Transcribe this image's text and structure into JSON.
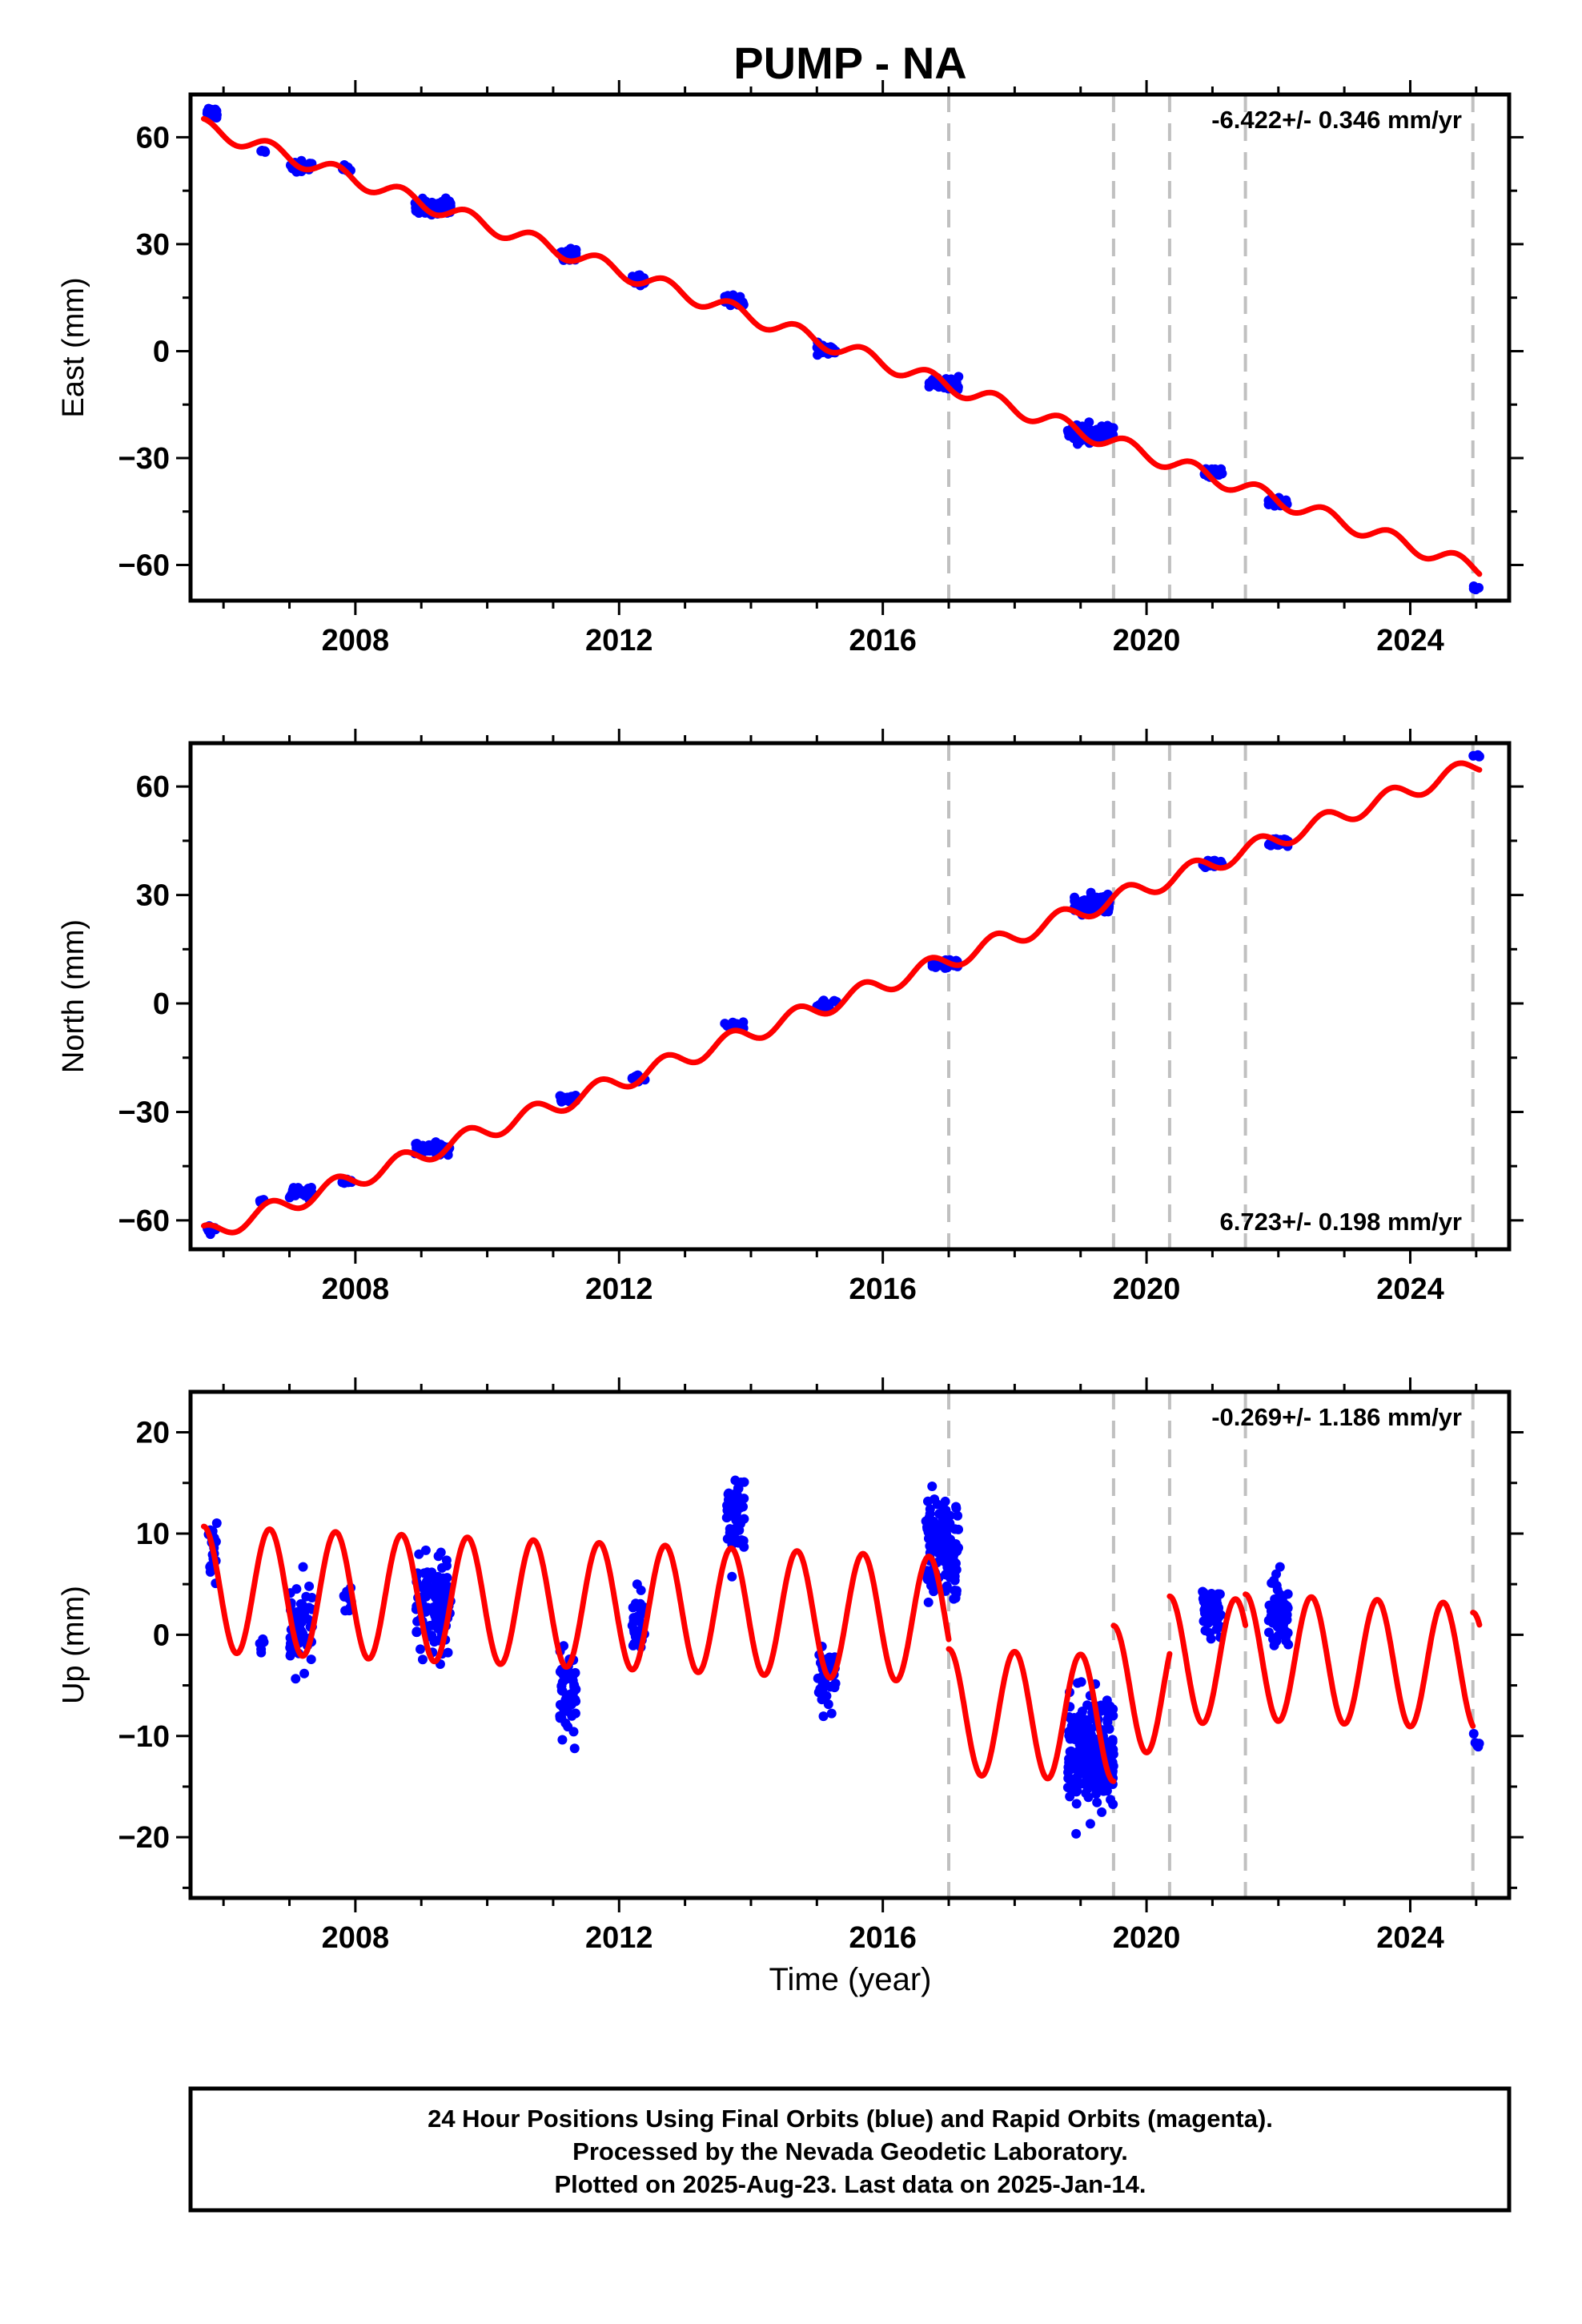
{
  "title": "PUMP - NA",
  "xlabel": "Time (year)",
  "caption": [
    "24 Hour Positions Using Final Orbits (blue) and Rapid Orbits (magenta).",
    "Processed by the Nevada Geodetic Laboratory.",
    "Plotted on 2025-Aug-23. Last data on 2025-Jan-14."
  ],
  "colors": {
    "data": "#0000ff",
    "model": "#ff0000",
    "steps": "#c0c0c0",
    "axes": "#000000"
  },
  "chart_data": [
    {
      "type": "scatter",
      "panel": "east",
      "ylabel": "East (mm)",
      "rate_text": "-6.422+/- 0.346 mm/yr",
      "rate_position": "top-right",
      "xlim": [
        2005.5,
        2025.5
      ],
      "ylim": [
        -70,
        72
      ],
      "xticks": [
        2008,
        2012,
        2016,
        2020,
        2024
      ],
      "yticks": [
        60,
        30,
        0,
        -30,
        -60
      ],
      "ytick_labels": [
        "60",
        "30",
        "0",
        "−30",
        "−60"
      ],
      "step_lines": [
        2017.0,
        2019.5,
        2020.35,
        2021.5,
        2024.95
      ],
      "model_segments": [
        {
          "x0": 2005.7,
          "x1": 2025.05,
          "y0": 63.0,
          "rate": -6.422,
          "amp": 2.2,
          "phase": 0.0
        }
      ],
      "data_clusters": [
        {
          "x": [
            2005.75,
            2005.9
          ],
          "y": 66.5,
          "spread": 3.5,
          "n": 22
        },
        {
          "x": [
            2006.55,
            2006.65
          ],
          "y": 56.0,
          "spread": 1.0,
          "n": 6
        },
        {
          "x": [
            2007.0,
            2007.35
          ],
          "y": 52.0,
          "spread": 3.0,
          "n": 30
        },
        {
          "x": [
            2007.8,
            2007.95
          ],
          "y": 51.0,
          "spread": 2.0,
          "n": 10
        },
        {
          "x": [
            2008.9,
            2009.45
          ],
          "y": 40.0,
          "spread": 4.5,
          "n": 70
        },
        {
          "x": [
            2011.1,
            2011.35
          ],
          "y": 27.0,
          "spread": 3.5,
          "n": 30
        },
        {
          "x": [
            2012.2,
            2012.4
          ],
          "y": 20.0,
          "spread": 2.5,
          "n": 18
        },
        {
          "x": [
            2013.6,
            2013.9
          ],
          "y": 14.5,
          "spread": 3.0,
          "n": 28
        },
        {
          "x": [
            2015.0,
            2015.3
          ],
          "y": 0.5,
          "spread": 3.0,
          "n": 28
        },
        {
          "x": [
            2016.7,
            2017.15
          ],
          "y": -9.0,
          "spread": 3.0,
          "n": 60
        },
        {
          "x": [
            2018.8,
            2019.5
          ],
          "y": -23.0,
          "spread": 4.0,
          "n": 120
        },
        {
          "x": [
            2020.85,
            2021.15
          ],
          "y": -34.0,
          "spread": 2.0,
          "n": 25
        },
        {
          "x": [
            2021.85,
            2022.15
          ],
          "y": -42.5,
          "spread": 2.0,
          "n": 40
        },
        {
          "x": [
            2024.95,
            2025.05
          ],
          "y": -66.5,
          "spread": 1.2,
          "n": 5
        }
      ]
    },
    {
      "type": "scatter",
      "panel": "north",
      "ylabel": "North (mm)",
      "rate_text": "6.723+/- 0.198 mm/yr",
      "rate_position": "bottom-right",
      "xlim": [
        2005.5,
        2025.5
      ],
      "ylim": [
        -68,
        72
      ],
      "xticks": [
        2008,
        2012,
        2016,
        2020,
        2024
      ],
      "yticks": [
        60,
        30,
        0,
        -30,
        -60
      ],
      "ytick_labels": [
        "60",
        "30",
        "0",
        "−30",
        "−60"
      ],
      "step_lines": [
        2017.0,
        2019.5,
        2020.35,
        2021.5,
        2024.95
      ],
      "model_segments": [
        {
          "x0": 2005.7,
          "x1": 2025.05,
          "y0": -64.0,
          "rate": 6.723,
          "amp": 2.5,
          "phase": 0.0
        }
      ],
      "data_clusters": [
        {
          "x": [
            2005.75,
            2005.9
          ],
          "y": -62.5,
          "spread": 2.0,
          "n": 14
        },
        {
          "x": [
            2006.55,
            2006.65
          ],
          "y": -54.5,
          "spread": 1.0,
          "n": 5
        },
        {
          "x": [
            2007.0,
            2007.35
          ],
          "y": -52.0,
          "spread": 3.5,
          "n": 30
        },
        {
          "x": [
            2007.8,
            2007.95
          ],
          "y": -49.5,
          "spread": 1.5,
          "n": 8
        },
        {
          "x": [
            2008.9,
            2009.45
          ],
          "y": -40.0,
          "spread": 2.5,
          "n": 70
        },
        {
          "x": [
            2011.1,
            2011.35
          ],
          "y": -26.5,
          "spread": 2.0,
          "n": 25
        },
        {
          "x": [
            2012.2,
            2012.4
          ],
          "y": -20.5,
          "spread": 1.5,
          "n": 15
        },
        {
          "x": [
            2013.6,
            2013.9
          ],
          "y": -6.0,
          "spread": 1.5,
          "n": 22
        },
        {
          "x": [
            2015.0,
            2015.3
          ],
          "y": -0.5,
          "spread": 2.5,
          "n": 22
        },
        {
          "x": [
            2016.75,
            2017.15
          ],
          "y": 11.0,
          "spread": 2.0,
          "n": 55
        },
        {
          "x": [
            2018.9,
            2019.45
          ],
          "y": 27.5,
          "spread": 4.0,
          "n": 110
        },
        {
          "x": [
            2020.85,
            2021.15
          ],
          "y": 38.5,
          "spread": 1.5,
          "n": 25
        },
        {
          "x": [
            2021.85,
            2022.15
          ],
          "y": 44.5,
          "spread": 2.0,
          "n": 35
        },
        {
          "x": [
            2024.95,
            2025.05
          ],
          "y": 68.5,
          "spread": 1.0,
          "n": 4
        }
      ]
    },
    {
      "type": "scatter",
      "panel": "up",
      "ylabel": "Up (mm)",
      "rate_text": "-0.269+/- 1.186 mm/yr",
      "rate_position": "top-right",
      "xlim": [
        2005.5,
        2025.5
      ],
      "ylim": [
        -26,
        24
      ],
      "xticks": [
        2008,
        2012,
        2016,
        2020,
        2024
      ],
      "yticks": [
        20,
        10,
        0,
        -10,
        -20
      ],
      "ytick_labels": [
        "20",
        "10",
        "0",
        "−10",
        "−20"
      ],
      "step_lines": [
        2017.0,
        2019.5,
        2020.35,
        2021.5,
        2024.95
      ],
      "model_segments": [
        {
          "x0": 2005.7,
          "x1": 2017.0,
          "y0": 4.5,
          "rate": -0.269,
          "amp": 6.2,
          "phase": 0.0
        },
        {
          "x0": 2017.0,
          "x1": 2019.5,
          "y0": -7.6,
          "rate": -0.269,
          "amp": 6.2,
          "phase": 0.0
        },
        {
          "x0": 2019.5,
          "x1": 2020.35,
          "y0": -5.3,
          "rate": -0.269,
          "amp": 6.2,
          "phase": 0.0
        },
        {
          "x0": 2020.35,
          "x1": 2021.5,
          "y0": -2.4,
          "rate": -0.269,
          "amp": 6.2,
          "phase": 0.0
        },
        {
          "x0": 2021.5,
          "x1": 2024.95,
          "y0": -2.2,
          "rate": -0.269,
          "amp": 6.2,
          "phase": 0.0
        },
        {
          "x0": 2024.95,
          "x1": 2025.05,
          "y0": -4.0,
          "rate": -0.269,
          "amp": 6.2,
          "phase": 0.0
        }
      ],
      "data_clusters": [
        {
          "x": [
            2005.75,
            2005.9
          ],
          "y": 9.0,
          "spread": 6.0,
          "n": 25
        },
        {
          "x": [
            2006.55,
            2006.65
          ],
          "y": -1.0,
          "spread": 2.0,
          "n": 5
        },
        {
          "x": [
            2007.0,
            2007.35
          ],
          "y": 1.0,
          "spread": 7.0,
          "n": 60
        },
        {
          "x": [
            2007.8,
            2007.95
          ],
          "y": 3.5,
          "spread": 3.5,
          "n": 12
        },
        {
          "x": [
            2008.9,
            2009.45
          ],
          "y": 3.0,
          "spread": 8.0,
          "n": 120
        },
        {
          "x": [
            2011.1,
            2011.35
          ],
          "y": -5.5,
          "spread": 7.0,
          "n": 60
        },
        {
          "x": [
            2012.2,
            2012.4
          ],
          "y": 1.0,
          "spread": 5.0,
          "n": 30
        },
        {
          "x": [
            2013.6,
            2013.9
          ],
          "y": 11.5,
          "spread": 7.0,
          "n": 50
        },
        {
          "x": [
            2015.0,
            2015.3
          ],
          "y": -4.0,
          "spread": 5.0,
          "n": 40
        },
        {
          "x": [
            2016.65,
            2017.15
          ],
          "y": 9.0,
          "spread": 8.5,
          "n": 130
        },
        {
          "x": [
            2018.8,
            2019.5
          ],
          "y": -12.0,
          "spread": 9.0,
          "n": 220
        },
        {
          "x": [
            2020.85,
            2021.15
          ],
          "y": 2.5,
          "spread": 4.5,
          "n": 40
        },
        {
          "x": [
            2021.85,
            2022.15
          ],
          "y": 2.0,
          "spread": 6.0,
          "n": 60
        },
        {
          "x": [
            2024.95,
            2025.05
          ],
          "y": -10.5,
          "spread": 2.5,
          "n": 5
        }
      ]
    }
  ]
}
